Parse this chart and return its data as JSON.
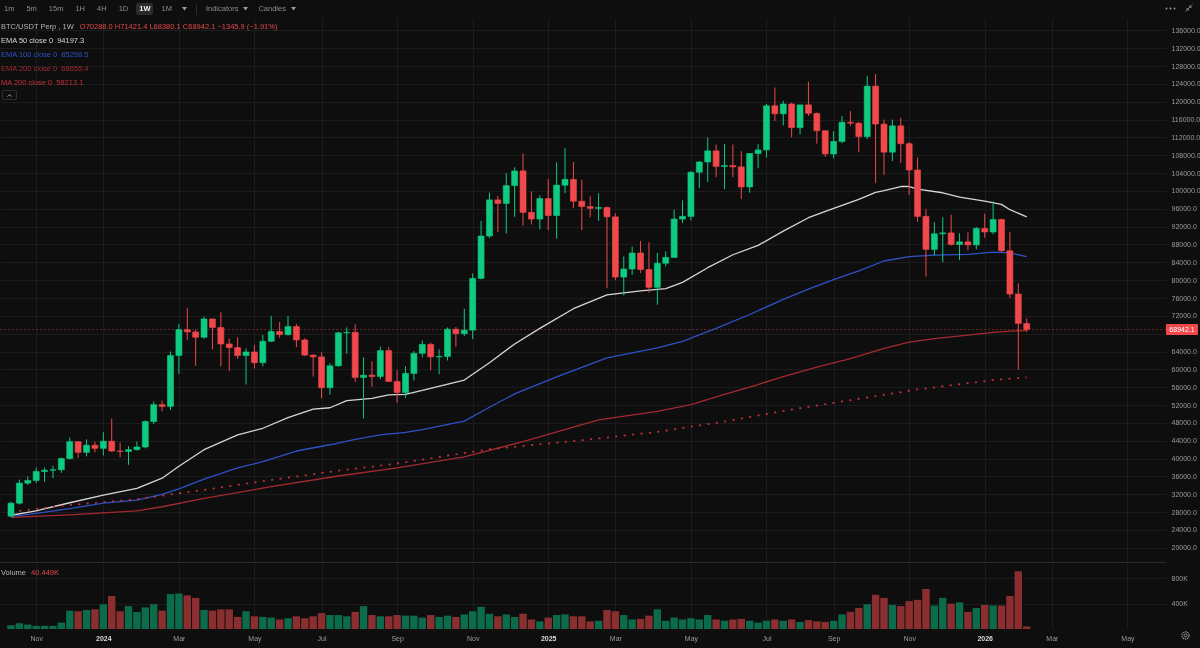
{
  "chart_data": [
    {
      "type": "other",
      "annotations": [
        "1m",
        "5m",
        "15m",
        "1H",
        "4H",
        "1D",
        "1W",
        "1M",
        "Indicators",
        "Candles"
      ]
    },
    {
      "type": "candlestick",
      "title": "BTC/USDT Perp , 1W",
      "subtitle": "O70288.0 H71421.4 L68380.1 C68942.1 −1345.9 (−1.91%)",
      "annotations": [
        "94197.3",
        "85298.5",
        "68655.4",
        "58213.1"
      ],
      "x": [
        "2023-10-16",
        "2023-10-23",
        "2023-10-30",
        "2023-11-06",
        "2023-11-13",
        "2023-11-20",
        "2023-11-27",
        "2023-12-04",
        "2023-12-11",
        "2023-12-18",
        "2023-12-25",
        "2024-01-01",
        "2024-01-08",
        "2024-01-15",
        "2024-01-22",
        "2024-01-29",
        "2024-02-05",
        "2024-02-12",
        "2024-02-19",
        "2024-02-26",
        "2024-03-04",
        "2024-03-11",
        "2024-03-18",
        "2024-03-25",
        "2024-04-01",
        "2024-04-08",
        "2024-04-15",
        "2024-04-22",
        "2024-04-29",
        "2024-05-06",
        "2024-05-13",
        "2024-05-20",
        "2024-05-27",
        "2024-06-03",
        "2024-06-10",
        "2024-06-17",
        "2024-06-24",
        "2024-07-01",
        "2024-07-08",
        "2024-07-15",
        "2024-07-22",
        "2024-07-29",
        "2024-08-05",
        "2024-08-12",
        "2024-08-19",
        "2024-08-26",
        "2024-09-02",
        "2024-09-09",
        "2024-09-16",
        "2024-09-23",
        "2024-09-30",
        "2024-10-07",
        "2024-10-14",
        "2024-10-21",
        "2024-10-28",
        "2024-11-04",
        "2024-11-11",
        "2024-11-18",
        "2024-11-25",
        "2024-12-02",
        "2024-12-09",
        "2024-12-16",
        "2024-12-23",
        "2024-12-30",
        "2025-01-06",
        "2025-01-13",
        "2025-01-20",
        "2025-01-27",
        "2025-02-03",
        "2025-02-10",
        "2025-02-17",
        "2025-02-24",
        "2025-03-03",
        "2025-03-10",
        "2025-03-17",
        "2025-03-24",
        "2025-03-31",
        "2025-04-07",
        "2025-04-14",
        "2025-04-21",
        "2025-04-28",
        "2025-05-05",
        "2025-05-12",
        "2025-05-19",
        "2025-05-26",
        "2025-06-02",
        "2025-06-09",
        "2025-06-16",
        "2025-06-23",
        "2025-06-30",
        "2025-07-07",
        "2025-07-14",
        "2025-07-21",
        "2025-07-28",
        "2025-08-04",
        "2025-08-11",
        "2025-08-18",
        "2025-08-25",
        "2025-09-01",
        "2025-09-08",
        "2025-09-15",
        "2025-09-22",
        "2025-09-29",
        "2025-10-06",
        "2025-10-13",
        "2025-10-20",
        "2025-10-27",
        "2025-11-03",
        "2025-11-10",
        "2025-11-17",
        "2025-11-24",
        "2025-12-01",
        "2025-12-08",
        "2025-12-15",
        "2025-12-22",
        "2025-12-29",
        "2026-01-05",
        "2026-01-12",
        "2026-01-19",
        "2026-01-26",
        "2026-02-02",
        "2026-02-09"
      ],
      "ohlc": [
        [
          27100,
          30300,
          26900,
          30000
        ],
        [
          30000,
          35300,
          29700,
          34500
        ],
        [
          34500,
          36000,
          34100,
          35100
        ],
        [
          35100,
          38000,
          34500,
          37100
        ],
        [
          37100,
          38000,
          34800,
          37400
        ],
        [
          37400,
          38400,
          35600,
          37500
        ],
        [
          37500,
          40200,
          36800,
          40000
        ],
        [
          40000,
          44700,
          39800,
          43800
        ],
        [
          43800,
          43900,
          40200,
          41400
        ],
        [
          41400,
          44300,
          40500,
          43000
        ],
        [
          43000,
          43800,
          41400,
          42300
        ],
        [
          42300,
          45900,
          40700,
          43900
        ],
        [
          43900,
          49000,
          41500,
          41700
        ],
        [
          41700,
          43600,
          40300,
          41600
        ],
        [
          41600,
          42800,
          38600,
          42000
        ],
        [
          42000,
          43800,
          41800,
          42600
        ],
        [
          42600,
          48600,
          42300,
          48300
        ],
        [
          48300,
          52800,
          47700,
          52100
        ],
        [
          52100,
          53000,
          50600,
          51700
        ],
        [
          51700,
          64000,
          50900,
          63100
        ],
        [
          63100,
          70200,
          59000,
          68900
        ],
        [
          68900,
          73800,
          66600,
          68400
        ],
        [
          68400,
          68900,
          60800,
          67200
        ],
        [
          67200,
          71800,
          66900,
          71300
        ],
        [
          71300,
          71400,
          64500,
          69400
        ],
        [
          69400,
          72800,
          60700,
          65700
        ],
        [
          65700,
          66900,
          59600,
          64900
        ],
        [
          64900,
          67200,
          62400,
          63100
        ],
        [
          63100,
          64700,
          56600,
          63900
        ],
        [
          63900,
          65500,
          60200,
          61500
        ],
        [
          61500,
          67700,
          60700,
          66300
        ],
        [
          66300,
          72000,
          66100,
          68500
        ],
        [
          68500,
          70600,
          67100,
          67800
        ],
        [
          67800,
          72000,
          67600,
          69600
        ],
        [
          69600,
          70200,
          65000,
          66600
        ],
        [
          66600,
          67000,
          63000,
          63200
        ],
        [
          63200,
          63400,
          58400,
          62800
        ],
        [
          62800,
          63800,
          53500,
          55900
        ],
        [
          55900,
          61400,
          54300,
          60800
        ],
        [
          60800,
          68400,
          60600,
          68200
        ],
        [
          68200,
          69400,
          63500,
          68300
        ],
        [
          68300,
          70100,
          57200,
          58200
        ],
        [
          58200,
          62700,
          49000,
          58700
        ],
        [
          58700,
          61800,
          56100,
          58400
        ],
        [
          58400,
          65100,
          57800,
          64200
        ],
        [
          64200,
          65000,
          57200,
          57300
        ],
        [
          57300,
          59800,
          52500,
          54800
        ],
        [
          54800,
          60700,
          53600,
          59100
        ],
        [
          59100,
          64100,
          57500,
          63600
        ],
        [
          63600,
          66500,
          62700,
          65600
        ],
        [
          65600,
          66000,
          59800,
          62800
        ],
        [
          62800,
          64500,
          58900,
          62900
        ],
        [
          62900,
          69400,
          62000,
          69000
        ],
        [
          69000,
          69500,
          65100,
          68000
        ],
        [
          68000,
          73600,
          67500,
          68800
        ],
        [
          68800,
          81500,
          66800,
          80400
        ],
        [
          80400,
          93300,
          80200,
          89900
        ],
        [
          89900,
          99600,
          89400,
          98000
        ],
        [
          98000,
          98900,
          90800,
          97200
        ],
        [
          97200,
          104000,
          90500,
          101200
        ],
        [
          101200,
          105300,
          94200,
          104500
        ],
        [
          104500,
          108400,
          92200,
          95200
        ],
        [
          95200,
          99900,
          92500,
          93700
        ],
        [
          93700,
          99000,
          91400,
          98300
        ],
        [
          98300,
          102700,
          91200,
          94500
        ],
        [
          94500,
          106400,
          89300,
          101300
        ],
        [
          101300,
          109600,
          99500,
          102600
        ],
        [
          102600,
          106500,
          96200,
          97700
        ],
        [
          97700,
          102500,
          91200,
          96500
        ],
        [
          96500,
          98800,
          94100,
          96100
        ],
        [
          96100,
          99500,
          93300,
          96300
        ],
        [
          96300,
          96500,
          78200,
          94200
        ],
        [
          94200,
          95000,
          80000,
          80700
        ],
        [
          80700,
          85300,
          76600,
          82500
        ],
        [
          82500,
          87500,
          81200,
          86100
        ],
        [
          86100,
          88800,
          81600,
          82400
        ],
        [
          82400,
          88500,
          77200,
          78400
        ],
        [
          78400,
          86100,
          74500,
          83800
        ],
        [
          83800,
          86500,
          83100,
          85100
        ],
        [
          85100,
          95800,
          85100,
          93700
        ],
        [
          93700,
          97900,
          92800,
          94300
        ],
        [
          94300,
          104400,
          93400,
          104200
        ],
        [
          104200,
          106700,
          100700,
          106500
        ],
        [
          106500,
          112000,
          102000,
          109000
        ],
        [
          109000,
          110400,
          103100,
          105500
        ],
        [
          105500,
          110500,
          100400,
          105700
        ],
        [
          105700,
          110400,
          103100,
          105400
        ],
        [
          105400,
          108900,
          98200,
          100900
        ],
        [
          100900,
          108500,
          99600,
          108400
        ],
        [
          108400,
          110500,
          105100,
          109200
        ],
        [
          109200,
          119500,
          107500,
          119100
        ],
        [
          119100,
          123200,
          115700,
          117300
        ],
        [
          117300,
          120200,
          114700,
          119500
        ],
        [
          119500,
          119800,
          112000,
          114200
        ],
        [
          114200,
          119300,
          112700,
          119300
        ],
        [
          119300,
          124500,
          116800,
          117400
        ],
        [
          117400,
          117600,
          110600,
          113500
        ],
        [
          113500,
          113600,
          107600,
          108300
        ],
        [
          108300,
          113400,
          107300,
          111100
        ],
        [
          111100,
          116800,
          110700,
          115400
        ],
        [
          115400,
          117900,
          114600,
          115200
        ],
        [
          115200,
          115500,
          108700,
          112200
        ],
        [
          112200,
          125800,
          111600,
          123500
        ],
        [
          123500,
          126200,
          101800,
          115000
        ],
        [
          115000,
          116000,
          103600,
          108700
        ],
        [
          108700,
          116000,
          106700,
          114600
        ],
        [
          114600,
          116400,
          106300,
          110600
        ],
        [
          110600,
          111000,
          99100,
          104700
        ],
        [
          104700,
          107500,
          93100,
          94300
        ],
        [
          94300,
          96000,
          80800,
          86900
        ],
        [
          86900,
          93000,
          85600,
          90400
        ],
        [
          90400,
          94100,
          84000,
          90600
        ],
        [
          90600,
          94700,
          87800,
          88000
        ],
        [
          88000,
          90500,
          84500,
          88600
        ],
        [
          88600,
          90700,
          86700,
          87900
        ],
        [
          87900,
          91900,
          86900,
          91600
        ],
        [
          91600,
          94900,
          89500,
          90800
        ],
        [
          90800,
          97700,
          90300,
          93600
        ],
        [
          93600,
          93800,
          86300,
          86600
        ],
        [
          86600,
          90800,
          76000,
          76900
        ],
        [
          76900,
          79300,
          59900,
          70300
        ],
        [
          70288.0,
          71421.4,
          68380.1,
          68942.1
        ]
      ],
      "colors": [
        "#0ecb81",
        "#0ecb81",
        "#0ecb81",
        "#0ecb81",
        "#0ecb81",
        "#0ecb81",
        "#0ecb81",
        "#0ecb81",
        "#f0484b",
        "#0ecb81",
        "#f0484b",
        "#0ecb81",
        "#f0484b",
        "#f0484b",
        "#0ecb81",
        "#0ecb81",
        "#0ecb81",
        "#0ecb81",
        "#f0484b",
        "#0ecb81",
        "#0ecb81",
        "#f0484b",
        "#f0484b",
        "#0ecb81",
        "#f0484b",
        "#f0484b",
        "#f0484b",
        "#f0484b",
        "#0ecb81",
        "#f0484b",
        "#0ecb81",
        "#0ecb81",
        "#f0484b",
        "#0ecb81",
        "#f0484b",
        "#f0484b",
        "#f0484b",
        "#f0484b",
        "#0ecb81",
        "#0ecb81",
        "#0ecb81",
        "#f0484b",
        "#0ecb81",
        "#f0484b",
        "#0ecb81",
        "#f0484b",
        "#f0484b",
        "#0ecb81",
        "#0ecb81",
        "#0ecb81",
        "#f0484b",
        "#0ecb81",
        "#0ecb81",
        "#f0484b",
        "#0ecb81",
        "#0ecb81",
        "#0ecb81",
        "#0ecb81",
        "#f0484b",
        "#0ecb81",
        "#0ecb81",
        "#f0484b",
        "#f0484b",
        "#0ecb81",
        "#f0484b",
        "#0ecb81",
        "#0ecb81",
        "#f0484b",
        "#f0484b",
        "#f0484b",
        "#0ecb81",
        "#f0484b",
        "#f0484b",
        "#0ecb81",
        "#0ecb81",
        "#f0484b",
        "#f0484b",
        "#0ecb81",
        "#0ecb81",
        "#0ecb81",
        "#0ecb81",
        "#0ecb81",
        "#0ecb81",
        "#0ecb81",
        "#f0484b",
        "#0ecb81",
        "#f0484b",
        "#f0484b",
        "#0ecb81",
        "#0ecb81",
        "#0ecb81",
        "#f0484b",
        "#0ecb81",
        "#f0484b",
        "#0ecb81",
        "#f0484b",
        "#f0484b",
        "#f0484b",
        "#0ecb81",
        "#0ecb81",
        "#f0484b",
        "#f0484b",
        "#0ecb81",
        "#f0484b",
        "#f0484b",
        "#0ecb81",
        "#f0484b",
        "#f0484b",
        "#f0484b",
        "#f0484b",
        "#0ecb81",
        "#0ecb81",
        "#f0484b",
        "#0ecb81",
        "#f0484b",
        "#0ecb81",
        "#f0484b",
        "#0ecb81",
        "#f0484b",
        "#f0484b",
        "#f0484b",
        "#f0484b"
      ],
      "series": [
        {
          "name": "EMA 50 close 0",
          "type": "line",
          "color": "#d6d6d6",
          "x": [
            "2023-10-16",
            "2023-11-06",
            "2023-12-04",
            "2024-01-01",
            "2024-01-29",
            "2024-02-19",
            "2024-03-04",
            "2024-03-25",
            "2024-04-22",
            "2024-05-13",
            "2024-06-03",
            "2024-06-24",
            "2024-07-08",
            "2024-07-22",
            "2024-08-12",
            "2024-08-26",
            "2024-09-09",
            "2024-09-23",
            "2024-10-28",
            "2024-11-18",
            "2024-12-09",
            "2024-12-30",
            "2025-01-27",
            "2025-02-24",
            "2025-03-24",
            "2025-04-14",
            "2025-04-28",
            "2025-05-19",
            "2025-06-09",
            "2025-06-30",
            "2025-07-21",
            "2025-08-11",
            "2025-09-01",
            "2025-09-22",
            "2025-10-06",
            "2025-10-13",
            "2025-10-27",
            "2025-11-03",
            "2025-11-10",
            "2025-12-01",
            "2025-12-15",
            "2026-01-05",
            "2026-01-19",
            "2026-01-26",
            "2026-02-09"
          ],
          "values": [
            27300,
            28300,
            30100,
            31800,
            33300,
            35600,
            38300,
            42000,
            45300,
            46800,
            49200,
            51100,
            51400,
            53000,
            53500,
            54300,
            54400,
            55300,
            57600,
            61500,
            65700,
            69200,
            73600,
            76700,
            77600,
            78100,
            79500,
            82800,
            85700,
            87800,
            91000,
            94000,
            96100,
            98100,
            99700,
            100100,
            101000,
            101000,
            100400,
            99600,
            98600,
            97700,
            97000,
            95800,
            94200
          ]
        },
        {
          "name": "EMA 100 close 0",
          "type": "line",
          "color": "#2d52c8",
          "x": [
            "2023-10-16",
            "2023-11-06",
            "2023-12-04",
            "2024-01-01",
            "2024-01-29",
            "2024-02-19",
            "2024-03-04",
            "2024-03-25",
            "2024-04-22",
            "2024-05-13",
            "2024-06-10",
            "2024-07-08",
            "2024-07-29",
            "2024-08-19",
            "2024-09-09",
            "2024-09-23",
            "2024-10-28",
            "2024-11-18",
            "2024-12-09",
            "2025-01-13",
            "2025-02-24",
            "2025-04-07",
            "2025-04-28",
            "2025-05-26",
            "2025-06-23",
            "2025-07-21",
            "2025-08-11",
            "2025-09-01",
            "2025-09-22",
            "2025-10-13",
            "2025-11-03",
            "2025-11-24",
            "2025-12-22",
            "2026-01-12",
            "2026-01-26",
            "2026-02-09"
          ],
          "values": [
            27000,
            27700,
            28800,
            30000,
            30700,
            32000,
            33200,
            35400,
            37900,
            39300,
            41700,
            43100,
            44300,
            45300,
            45900,
            46500,
            48400,
            51500,
            54500,
            58300,
            62600,
            64800,
            66300,
            69200,
            72300,
            75700,
            78000,
            80100,
            82100,
            84300,
            85300,
            85600,
            85800,
            86300,
            86100,
            85300
          ]
        },
        {
          "name": "EMA 200 close 0",
          "type": "line",
          "color": "#a32a30",
          "x": [
            "2023-10-16",
            "2023-12-04",
            "2024-01-29",
            "2024-02-19",
            "2024-03-25",
            "2024-05-20",
            "2024-07-15",
            "2024-09-02",
            "2024-10-28",
            "2024-12-16",
            "2025-02-17",
            "2025-04-07",
            "2025-05-05",
            "2025-06-02",
            "2025-06-30",
            "2025-07-21",
            "2025-08-18",
            "2025-09-15",
            "2025-10-13",
            "2025-11-03",
            "2025-11-24",
            "2025-12-22",
            "2026-01-12",
            "2026-01-26",
            "2026-02-09"
          ],
          "values": [
            26800,
            27400,
            28300,
            29200,
            31100,
            33700,
            36100,
            37900,
            40400,
            43800,
            48700,
            50600,
            52100,
            54400,
            56600,
            58400,
            60500,
            62400,
            64700,
            66100,
            66900,
            67700,
            68300,
            68600,
            68700
          ]
        },
        {
          "name": "MA 200 close 0",
          "type": "line",
          "line_style": "dotted",
          "color": "#c3313a",
          "x": [
            "2023-10-23",
            "2023-12-04",
            "2024-01-29",
            "2024-03-25",
            "2024-05-20",
            "2024-07-15",
            "2024-09-02",
            "2024-11-18",
            "2025-02-10",
            "2025-04-07",
            "2025-06-02",
            "2025-07-21",
            "2025-09-15",
            "2025-11-10",
            "2026-01-12",
            "2026-02-09"
          ],
          "values": [
            28300,
            29600,
            30900,
            33000,
            35200,
            37300,
            38900,
            42100,
            44300,
            46000,
            48300,
            50700,
            53100,
            55500,
            57600,
            58200
          ]
        }
      ],
      "xlim": [
        "2023-10-11",
        "2026-06-01"
      ],
      "xticks": [
        {
          "value": "2023-11-06",
          "label": null
        },
        {
          "value": "2024-01-01",
          "label": null
        },
        {
          "value": "2024-03-04",
          "label": null
        },
        {
          "value": "2024-05-06",
          "label": null
        },
        {
          "value": "2024-07-01",
          "label": null
        },
        {
          "value": "2024-09-02",
          "label": null
        },
        {
          "value": "2024-11-04",
          "label": null
        },
        {
          "value": "2025-01-06",
          "label": null
        },
        {
          "value": "2025-03-03",
          "label": null
        },
        {
          "value": "2025-05-05",
          "label": null
        },
        {
          "value": "2025-07-07",
          "label": null
        },
        {
          "value": "2025-09-01",
          "label": null
        },
        {
          "value": "2025-11-03",
          "label": null
        },
        {
          "value": "2026-01-05",
          "label": null
        },
        {
          "value": "2026-03-02",
          "label": null
        },
        {
          "value": "2026-05-04",
          "label": null
        }
      ],
      "ylim": [
        17040,
        138780
      ],
      "yticks": [
        {
          "value": 20000,
          "label": "20000.0"
        },
        {
          "value": 24000,
          "label": "24000.0"
        },
        {
          "value": 28000,
          "label": "28000.0"
        },
        {
          "value": 32000,
          "label": "32000.0"
        },
        {
          "value": 36000,
          "label": "36000.0"
        },
        {
          "value": 40000,
          "label": "40000.0"
        },
        {
          "value": 44000,
          "label": "44000.0"
        },
        {
          "value": 48000,
          "label": "48000.0"
        },
        {
          "value": 52000,
          "label": "52000.0"
        },
        {
          "value": 56000,
          "label": "56000.0"
        },
        {
          "value": 60000,
          "label": "60000.0"
        },
        {
          "value": 64000,
          "label": "64000.0"
        },
        {
          "value": 68000,
          "label": null
        },
        {
          "value": 72000,
          "label": "72000.0"
        },
        {
          "value": 76000,
          "label": "76000.0"
        },
        {
          "value": 80000,
          "label": "80000.0"
        },
        {
          "value": 84000,
          "label": "84000.0"
        },
        {
          "value": 88000,
          "label": "88000.0"
        },
        {
          "value": 92000,
          "label": "92000.0"
        },
        {
          "value": 96000,
          "label": "96000.0"
        },
        {
          "value": 100000,
          "label": "100000.0"
        },
        {
          "value": 104000,
          "label": "104000.0"
        },
        {
          "value": 108000,
          "label": "108000.0"
        },
        {
          "value": 112000,
          "label": "112000.0"
        },
        {
          "value": 116000,
          "label": "116000.0"
        },
        {
          "value": 120000,
          "label": "120000.0"
        },
        {
          "value": 124000,
          "label": "124000.0"
        },
        {
          "value": 128000,
          "label": "128000.0"
        },
        {
          "value": 132000,
          "label": "132000.0"
        },
        {
          "value": 136000,
          "label": "136000.0"
        }
      ],
      "ref_lines": [
        {
          "axis": "y",
          "value": 68942.1,
          "label": "68942.1",
          "color": "#f0484b",
          "line_style": "dotted"
        }
      ],
      "grid": true,
      "legend": "top left",
      "tick_labels": "y"
    },
    {
      "type": "bar",
      "title": "Volume",
      "annotations": [
        "40.449K"
      ],
      "x": [
        "2023-10-16",
        "2023-10-23",
        "2023-10-30",
        "2023-11-06",
        "2023-11-13",
        "2023-11-20",
        "2023-11-27",
        "2023-12-04",
        "2023-12-11",
        "2023-12-18",
        "2023-12-25",
        "2024-01-01",
        "2024-01-08",
        "2024-01-15",
        "2024-01-22",
        "2024-01-29",
        "2024-02-05",
        "2024-02-12",
        "2024-02-19",
        "2024-02-26",
        "2024-03-04",
        "2024-03-11",
        "2024-03-18",
        "2024-03-25",
        "2024-04-01",
        "2024-04-08",
        "2024-04-15",
        "2024-04-22",
        "2024-04-29",
        "2024-05-06",
        "2024-05-13",
        "2024-05-20",
        "2024-05-27",
        "2024-06-03",
        "2024-06-10",
        "2024-06-17",
        "2024-06-24",
        "2024-07-01",
        "2024-07-08",
        "2024-07-15",
        "2024-07-22",
        "2024-07-29",
        "2024-08-05",
        "2024-08-12",
        "2024-08-19",
        "2024-08-26",
        "2024-09-02",
        "2024-09-09",
        "2024-09-16",
        "2024-09-23",
        "2024-09-30",
        "2024-10-07",
        "2024-10-14",
        "2024-10-21",
        "2024-10-28",
        "2024-11-04",
        "2024-11-11",
        "2024-11-18",
        "2024-11-25",
        "2024-12-02",
        "2024-12-09",
        "2024-12-16",
        "2024-12-23",
        "2024-12-30",
        "2025-01-06",
        "2025-01-13",
        "2025-01-20",
        "2025-01-27",
        "2025-02-03",
        "2025-02-10",
        "2025-02-17",
        "2025-02-24",
        "2025-03-03",
        "2025-03-10",
        "2025-03-17",
        "2025-03-24",
        "2025-03-31",
        "2025-04-07",
        "2025-04-14",
        "2025-04-21",
        "2025-04-28",
        "2025-05-05",
        "2025-05-12",
        "2025-05-19",
        "2025-05-26",
        "2025-06-02",
        "2025-06-09",
        "2025-06-16",
        "2025-06-23",
        "2025-06-30",
        "2025-07-07",
        "2025-07-14",
        "2025-07-21",
        "2025-07-28",
        "2025-08-04",
        "2025-08-11",
        "2025-08-18",
        "2025-08-25",
        "2025-09-01",
        "2025-09-08",
        "2025-09-15",
        "2025-09-22",
        "2025-09-29",
        "2025-10-06",
        "2025-10-13",
        "2025-10-20",
        "2025-10-27",
        "2025-11-03",
        "2025-11-10",
        "2025-11-17",
        "2025-11-24",
        "2025-12-01",
        "2025-12-08",
        "2025-12-15",
        "2025-12-22",
        "2025-12-29",
        "2026-01-05",
        "2026-01-12",
        "2026-01-19",
        "2026-01-26",
        "2026-02-02",
        "2026-02-09"
      ],
      "values": [
        60000,
        90000,
        70000,
        50000,
        50000,
        50000,
        100000,
        290000,
        280000,
        300000,
        310000,
        390000,
        520000,
        280000,
        360000,
        270000,
        340000,
        390000,
        290000,
        550000,
        560000,
        530000,
        490000,
        300000,
        290000,
        310000,
        310000,
        190000,
        280000,
        200000,
        190000,
        180000,
        150000,
        170000,
        200000,
        170000,
        200000,
        250000,
        220000,
        220000,
        200000,
        270000,
        360000,
        220000,
        200000,
        200000,
        220000,
        210000,
        210000,
        180000,
        220000,
        190000,
        210000,
        190000,
        230000,
        280000,
        350000,
        240000,
        200000,
        230000,
        190000,
        240000,
        150000,
        120000,
        180000,
        220000,
        230000,
        200000,
        200000,
        120000,
        130000,
        300000,
        280000,
        220000,
        150000,
        160000,
        210000,
        310000,
        130000,
        180000,
        150000,
        170000,
        150000,
        220000,
        150000,
        130000,
        150000,
        160000,
        130000,
        100000,
        130000,
        150000,
        130000,
        150000,
        110000,
        140000,
        120000,
        110000,
        130000,
        230000,
        270000,
        330000,
        390000,
        540000,
        490000,
        380000,
        360000,
        440000,
        460000,
        630000,
        370000,
        490000,
        400000,
        420000,
        270000,
        330000,
        380000,
        370000,
        370000,
        520000,
        910000,
        40449
      ],
      "colors": [
        "#0b6b4b",
        "#0b6b4b",
        "#0b6b4b",
        "#0b6b4b",
        "#0b6b4b",
        "#0b6b4b",
        "#0b6b4b",
        "#0b6b4b",
        "#8b2e30",
        "#0b6b4b",
        "#8b2e30",
        "#0b6b4b",
        "#8b2e30",
        "#8b2e30",
        "#0b6b4b",
        "#0b6b4b",
        "#0b6b4b",
        "#0b6b4b",
        "#8b2e30",
        "#0b6b4b",
        "#0b6b4b",
        "#8b2e30",
        "#8b2e30",
        "#0b6b4b",
        "#8b2e30",
        "#8b2e30",
        "#8b2e30",
        "#8b2e30",
        "#0b6b4b",
        "#8b2e30",
        "#0b6b4b",
        "#0b6b4b",
        "#8b2e30",
        "#0b6b4b",
        "#8b2e30",
        "#8b2e30",
        "#8b2e30",
        "#8b2e30",
        "#0b6b4b",
        "#0b6b4b",
        "#0b6b4b",
        "#8b2e30",
        "#0b6b4b",
        "#8b2e30",
        "#0b6b4b",
        "#8b2e30",
        "#8b2e30",
        "#0b6b4b",
        "#0b6b4b",
        "#0b6b4b",
        "#8b2e30",
        "#0b6b4b",
        "#0b6b4b",
        "#8b2e30",
        "#0b6b4b",
        "#0b6b4b",
        "#0b6b4b",
        "#0b6b4b",
        "#8b2e30",
        "#0b6b4b",
        "#0b6b4b",
        "#8b2e30",
        "#8b2e30",
        "#0b6b4b",
        "#8b2e30",
        "#0b6b4b",
        "#0b6b4b",
        "#8b2e30",
        "#8b2e30",
        "#8b2e30",
        "#0b6b4b",
        "#8b2e30",
        "#8b2e30",
        "#0b6b4b",
        "#0b6b4b",
        "#8b2e30",
        "#8b2e30",
        "#0b6b4b",
        "#0b6b4b",
        "#0b6b4b",
        "#0b6b4b",
        "#0b6b4b",
        "#0b6b4b",
        "#0b6b4b",
        "#8b2e30",
        "#0b6b4b",
        "#8b2e30",
        "#8b2e30",
        "#0b6b4b",
        "#0b6b4b",
        "#0b6b4b",
        "#8b2e30",
        "#0b6b4b",
        "#8b2e30",
        "#0b6b4b",
        "#8b2e30",
        "#8b2e30",
        "#8b2e30",
        "#0b6b4b",
        "#0b6b4b",
        "#8b2e30",
        "#8b2e30",
        "#0b6b4b",
        "#8b2e30",
        "#8b2e30",
        "#0b6b4b",
        "#8b2e30",
        "#8b2e30",
        "#8b2e30",
        "#8b2e30",
        "#0b6b4b",
        "#0b6b4b",
        "#8b2e30",
        "#0b6b4b",
        "#8b2e30",
        "#0b6b4b",
        "#8b2e30",
        "#0b6b4b",
        "#8b2e30",
        "#8b2e30",
        "#8b2e30",
        "#8b2e30"
      ],
      "xlim": [
        "2023-10-11",
        "2026-06-01"
      ],
      "xticks": [
        {
          "value": "2023-11-06",
          "label": "Nov"
        },
        {
          "value": "2024-01-01",
          "label": "2024"
        },
        {
          "value": "2024-03-04",
          "label": "Mar"
        },
        {
          "value": "2024-05-06",
          "label": "May"
        },
        {
          "value": "2024-07-01",
          "label": "Jul"
        },
        {
          "value": "2024-09-02",
          "label": "Sep"
        },
        {
          "value": "2024-11-04",
          "label": "Nov"
        },
        {
          "value": "2025-01-06",
          "label": "2025"
        },
        {
          "value": "2025-03-03",
          "label": "Mar"
        },
        {
          "value": "2025-05-05",
          "label": "May"
        },
        {
          "value": "2025-07-07",
          "label": "Jul"
        },
        {
          "value": "2025-09-01",
          "label": "Sep"
        },
        {
          "value": "2025-11-03",
          "label": "Nov"
        },
        {
          "value": "2026-01-05",
          "label": "2026"
        },
        {
          "value": "2026-03-02",
          "label": "Mar"
        },
        {
          "value": "2026-05-04",
          "label": "May"
        }
      ],
      "ylim": [
        0,
        1040000
      ],
      "yticks": [
        {
          "value": 400000,
          "label": "400K"
        },
        {
          "value": 800000,
          "label": "800K"
        }
      ],
      "grid": true
    }
  ]
}
